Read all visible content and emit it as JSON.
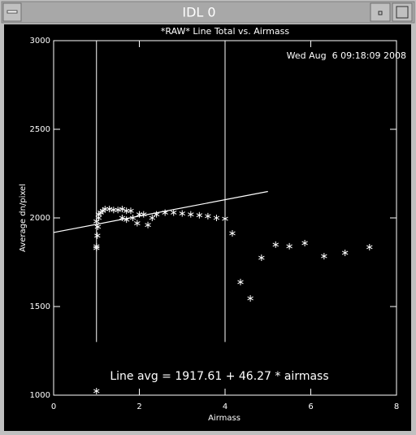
{
  "window": {
    "title": "IDL 0"
  },
  "chart_data": {
    "type": "scatter",
    "title": "*RAW* Line Total vs. Airmass",
    "date_label": "Wed Aug  6 09:18:09 2008",
    "annotation": "Line avg = 1917.61 + 46.27 * airmass",
    "x_label": "Airmass",
    "y_label": "Average dn/pixel",
    "xlim": [
      0,
      8
    ],
    "ylim": [
      1000,
      3000
    ],
    "xticks": [
      0,
      2,
      4,
      6,
      8
    ],
    "yticks": [
      1000,
      1500,
      2000,
      2500,
      3000
    ],
    "color": "#ffffff",
    "series": [
      {
        "x": [
          1.0,
          1.0,
          1.0,
          1.02,
          1.03,
          1.0,
          1.05,
          1.05,
          1.1,
          1.15,
          1.2,
          1.3,
          1.4,
          1.5,
          1.6,
          1.7,
          1.8,
          1.6,
          1.7,
          1.85,
          1.95,
          2.0,
          2.1,
          2.2,
          2.3,
          2.4,
          2.6,
          2.8,
          3.0,
          3.2,
          3.4,
          3.6,
          3.8,
          4.0,
          4.17,
          4.36,
          4.59,
          4.85,
          5.18,
          5.5,
          5.86,
          6.31,
          6.8,
          7.37
        ],
        "values": [
          1023,
          1840,
          1830,
          1900,
          1950,
          1980,
          2000,
          2020,
          2030,
          2040,
          2050,
          2050,
          2045,
          2045,
          2050,
          2040,
          2040,
          2000,
          1990,
          2000,
          1970,
          2020,
          2020,
          1960,
          2000,
          2020,
          2030,
          2030,
          2025,
          2020,
          2015,
          2010,
          2000,
          1995,
          1913,
          1638,
          1546,
          1775,
          1849,
          1840,
          1858,
          1784,
          1803,
          1835
        ]
      }
    ],
    "fit_line": {
      "x": [
        0,
        5
      ],
      "values": [
        1917.61,
        2148.96
      ]
    },
    "vertical_lines": [
      {
        "x": 1,
        "values": [
          1300,
          3000
        ]
      },
      {
        "x": 4,
        "values": [
          1300,
          3000
        ]
      }
    ]
  }
}
